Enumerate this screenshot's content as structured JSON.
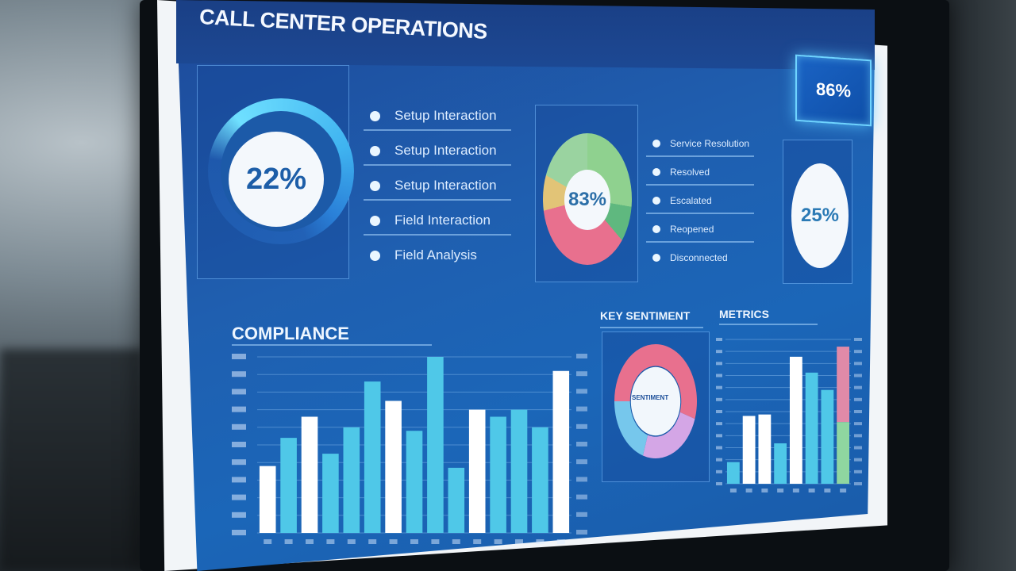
{
  "header": {
    "title": "CALL CENTER OPERATIONS",
    "badge": "86%"
  },
  "kpis": {
    "left_gauge": {
      "value": "22%"
    },
    "center_donut": {
      "value": "83%"
    },
    "right_circle": {
      "value": "25%"
    }
  },
  "legend_left": [
    {
      "label": "Setup Interaction"
    },
    {
      "label": "Setup Interaction"
    },
    {
      "label": "Setup Interaction"
    },
    {
      "label": "Field Interaction"
    },
    {
      "label": "Field Analysis"
    }
  ],
  "legend_right": [
    {
      "label": "Service Resolution"
    },
    {
      "label": "Resolved"
    },
    {
      "label": "Escalated"
    },
    {
      "label": "Reopened"
    },
    {
      "label": "Disconnected"
    }
  ],
  "sections": {
    "compliance": "COMPLIANCE",
    "sentiment": "KEY SENTIMENT",
    "metrics": "METRICS",
    "donut_center": "SENTIMENT"
  },
  "colors": {
    "accent": "#6fd4ff",
    "bar_white": "#ffffff",
    "bar_cyan": "#4fc8e8",
    "bar_teal": "#3bb6d0",
    "donut_pink": "#e8708e",
    "donut_green": "#7fc99a",
    "donut_yellow": "#e2c477",
    "donut_lilac": "#d4a6e6",
    "donut_blue": "#76c7ec"
  },
  "chart_data": [
    {
      "type": "bar",
      "title": "COMPLIANCE",
      "values": [
        38,
        54,
        66,
        45,
        60,
        86,
        75,
        58,
        100,
        37,
        70,
        66,
        70,
        60,
        92
      ],
      "colors": [
        "white",
        "cyan",
        "white",
        "cyan",
        "cyan",
        "cyan",
        "white",
        "cyan",
        "cyan",
        "cyan",
        "white",
        "cyan",
        "cyan",
        "cyan",
        "white"
      ],
      "ylim": [
        0,
        100
      ],
      "grid": true
    },
    {
      "type": "pie",
      "title": "KEY SENTIMENT",
      "labels": [
        "",
        "",
        "",
        ""
      ],
      "values": [
        30,
        25,
        20,
        25
      ]
    },
    {
      "type": "bar",
      "title": "METRICS",
      "values": [
        15,
        47,
        48,
        28,
        88,
        77,
        65,
        95
      ],
      "colors": [
        "cyan",
        "white",
        "white",
        "cyan",
        "white",
        "cyan",
        "cyan",
        "pink-green"
      ],
      "ylim": [
        0,
        100
      ],
      "grid": true
    }
  ]
}
